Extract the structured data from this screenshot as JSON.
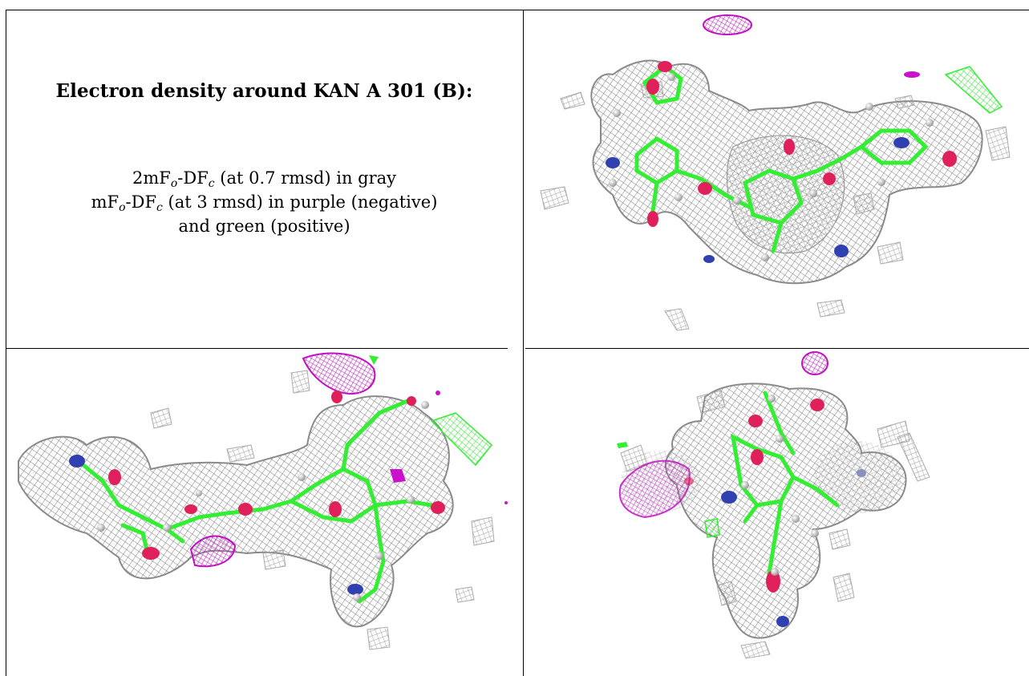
{
  "caption": {
    "title": "Electron density around KAN A 301 (B):",
    "line1": {
      "a": "2mF",
      "o": "o",
      "b": "-DF",
      "c": "c",
      "rest": " (at 0.7 rmsd) in gray"
    },
    "line2": {
      "a": "mF",
      "o": "o",
      "b": "-DF",
      "c": "c",
      "rest": " (at 3 rmsd) in purple (negative)"
    },
    "line3": "and green (positive)"
  },
  "colors": {
    "mesh_gray": "#8c8c8c",
    "negative_purple": "#cc11cc",
    "positive_green": "#33ee33",
    "oxygen": "#e0205a",
    "nitrogen": "#3040b0",
    "hydrogen": "#e8e8e8"
  },
  "panels": [
    {
      "name": "view-top-right",
      "view": 1
    },
    {
      "name": "view-bottom-left",
      "view": 2
    },
    {
      "name": "view-bottom-right",
      "view": 3
    }
  ]
}
